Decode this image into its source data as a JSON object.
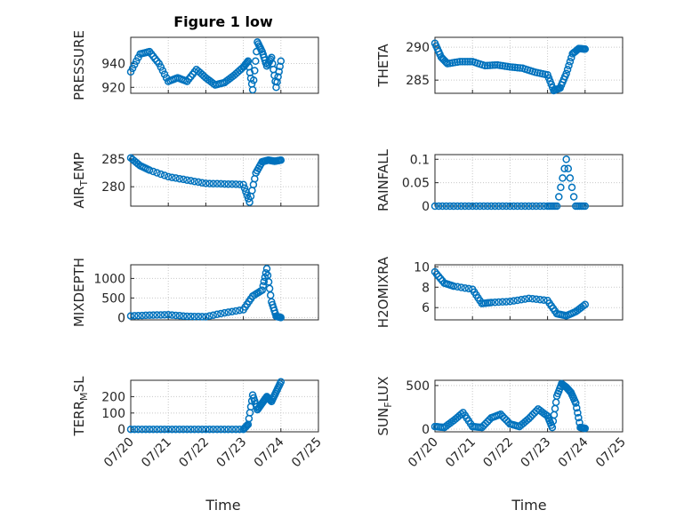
{
  "figure": {
    "title": "Figure 1 low",
    "xlabel": "Time"
  },
  "colors": {
    "marker": "#0072BD",
    "axis": "#262626",
    "grid": "#c8c8c8"
  },
  "chart_data": [
    {
      "type": "scatter",
      "ylabel": "PRESSURE",
      "xlim": [
        "07/20",
        "07/25"
      ],
      "ylim": [
        915,
        962
      ],
      "yticks": [
        920,
        940
      ],
      "x": [
        "07/20",
        "07/20 06:00",
        "07/20 12:00",
        "07/20 18:00",
        "07/21",
        "07/21 06:00",
        "07/21 12:00",
        "07/21 18:00",
        "07/22",
        "07/22 06:00",
        "07/22 12:00",
        "07/22 18:00",
        "07/23",
        "07/23 03:00",
        "07/23 06:00",
        "07/23 09:00",
        "07/23 12:00",
        "07/23 15:00",
        "07/23 18:00",
        "07/23 21:00",
        "07/24"
      ],
      "y": [
        933,
        948,
        950,
        940,
        925,
        928,
        925,
        935,
        928,
        922,
        924,
        930,
        937,
        942,
        918,
        958,
        950,
        938,
        945,
        920,
        942
      ]
    },
    {
      "type": "scatter",
      "ylabel": "THETA",
      "xlim": [
        "07/20",
        "07/25"
      ],
      "ylim": [
        283,
        291.5
      ],
      "yticks": [
        285,
        290
      ],
      "x": [
        "07/20",
        "07/20 04:00",
        "07/20 08:00",
        "07/20 16:00",
        "07/21",
        "07/21 08:00",
        "07/21 16:00",
        "07/22",
        "07/22 08:00",
        "07/22 16:00",
        "07/23",
        "07/23 04:00",
        "07/23 08:00",
        "07/23 12:00",
        "07/23 16:00",
        "07/23 20:00",
        "07/24"
      ],
      "y": [
        290.6,
        288.5,
        287.5,
        287.8,
        287.8,
        287.2,
        287.3,
        287,
        286.8,
        286.2,
        285.8,
        283.4,
        283.8,
        286,
        289,
        289.8,
        289.7
      ]
    },
    {
      "type": "scatter",
      "ylabel": "AIR_TEMP",
      "xlim": [
        "07/20",
        "07/25"
      ],
      "ylim": [
        276.5,
        285.8
      ],
      "yticks": [
        280,
        285
      ],
      "x": [
        "07/20",
        "07/20 06:00",
        "07/20 12:00",
        "07/21",
        "07/21 12:00",
        "07/22",
        "07/22 12:00",
        "07/23",
        "07/23 04:00",
        "07/23 08:00",
        "07/23 12:00",
        "07/23 16:00",
        "07/23 20:00",
        "07/24"
      ],
      "y": [
        285.2,
        283.8,
        283,
        281.8,
        281.2,
        280.6,
        280.5,
        280.4,
        277.2,
        282.5,
        284.5,
        284.8,
        284.6,
        284.8
      ]
    },
    {
      "type": "scatter",
      "ylabel": "RAINFALL",
      "xlim": [
        "07/20",
        "07/25"
      ],
      "ylim": [
        0,
        0.11
      ],
      "yticks": [
        0,
        0.05,
        0.1
      ],
      "ytick_labels": [
        "0",
        "0.05",
        "0.1"
      ],
      "x": [
        "07/20",
        "07/20 12:00",
        "07/21",
        "07/21 12:00",
        "07/22",
        "07/22 12:00",
        "07/23",
        "07/23 06:00",
        "07/23 12:00",
        "07/23 18:00",
        "07/24"
      ],
      "y": [
        0,
        0,
        0,
        0,
        0,
        0,
        0,
        0,
        0.1,
        0,
        0
      ]
    },
    {
      "type": "scatter",
      "ylabel": "MIXDEPTH",
      "xlim": [
        "07/20",
        "07/25"
      ],
      "ylim": [
        -60,
        1350
      ],
      "yticks": [
        0,
        500,
        1000
      ],
      "x": [
        "07/20",
        "07/20 12:00",
        "07/21",
        "07/21 12:00",
        "07/22",
        "07/22 12:00",
        "07/23",
        "07/23 06:00",
        "07/23 12:00",
        "07/23 15:00",
        "07/23 18:00",
        "07/23 21:00",
        "07/24"
      ],
      "y": [
        40,
        60,
        70,
        30,
        20,
        120,
        200,
        550,
        700,
        1250,
        400,
        30,
        0
      ]
    },
    {
      "type": "scatter",
      "ylabel": "H2OMIXRA",
      "xlim": [
        "07/20",
        "07/25"
      ],
      "ylim": [
        4.8,
        10.2
      ],
      "yticks": [
        6,
        8,
        10
      ],
      "x": [
        "07/20",
        "07/20 06:00",
        "07/20 12:00",
        "07/21",
        "07/21 06:00",
        "07/21 12:00",
        "07/22",
        "07/22 12:00",
        "07/23",
        "07/23 06:00",
        "07/23 12:00",
        "07/23 18:00",
        "07/24"
      ],
      "y": [
        9.5,
        8.4,
        8.1,
        7.8,
        6.4,
        6.5,
        6.6,
        6.9,
        6.7,
        5.4,
        5.2,
        5.6,
        6.3
      ]
    },
    {
      "type": "scatter",
      "ylabel": "TERR_MSL",
      "xlim": [
        "07/20",
        "07/25"
      ],
      "ylim": [
        -15,
        300
      ],
      "yticks": [
        0,
        100,
        200
      ],
      "x": [
        "07/20",
        "07/20 12:00",
        "07/21",
        "07/21 12:00",
        "07/22",
        "07/22 12:00",
        "07/23",
        "07/23 03:00",
        "07/23 06:00",
        "07/23 09:00",
        "07/23 12:00",
        "07/23 15:00",
        "07/23 18:00",
        "07/23 21:00",
        "07/24"
      ],
      "y": [
        0,
        0,
        0,
        0,
        0,
        0,
        0,
        30,
        210,
        120,
        160,
        200,
        170,
        230,
        290
      ]
    },
    {
      "type": "scatter",
      "ylabel": "SUN_FLUX",
      "xlim": [
        "07/20",
        "07/25"
      ],
      "ylim": [
        -30,
        560
      ],
      "yticks": [
        0,
        500
      ],
      "x": [
        "07/20",
        "07/20 06:00",
        "07/20 12:00",
        "07/20 18:00",
        "07/21",
        "07/21 06:00",
        "07/21 12:00",
        "07/21 18:00",
        "07/22",
        "07/22 06:00",
        "07/22 12:00",
        "07/22 18:00",
        "07/23",
        "07/23 03:00",
        "07/23 06:00",
        "07/23 09:00",
        "07/23 12:00",
        "07/23 15:00",
        "07/23 18:00",
        "07/23 21:00",
        "07/24"
      ],
      "y": [
        30,
        20,
        100,
        190,
        30,
        20,
        130,
        170,
        60,
        30,
        120,
        230,
        150,
        20,
        380,
        520,
        480,
        420,
        300,
        20,
        10
      ]
    }
  ],
  "xticks": [
    "07/20",
    "07/21",
    "07/22",
    "07/23",
    "07/24",
    "07/25"
  ],
  "xtick_labels": [
    "07/20",
    "07/21",
    "07/22",
    "07/23",
    "07/24",
    "07/25"
  ]
}
